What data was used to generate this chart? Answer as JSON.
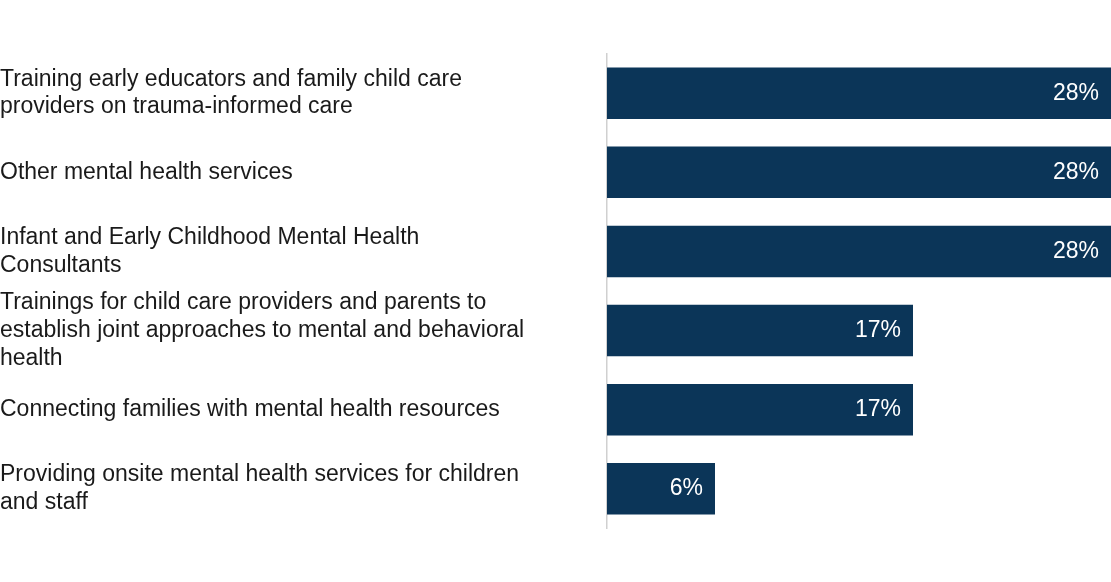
{
  "chart_data": {
    "type": "bar",
    "orientation": "horizontal",
    "categories": [
      "Training early educators and family child care providers on trauma-informed care",
      "Other mental health services",
      "Infant and Early Childhood Mental Health Consultants",
      "Trainings for child care providers and parents to establish joint approaches to mental and behavioral health",
      "Connecting families with mental health resources",
      "Providing onsite mental health services for children and staff"
    ],
    "values": [
      28,
      28,
      28,
      17,
      17,
      6
    ],
    "value_labels": [
      "28%",
      "28%",
      "28%",
      "17%",
      "17%",
      "6%"
    ],
    "color": "#0b3558",
    "xlim": [
      0,
      28
    ],
    "grid": false,
    "legend": false,
    "tick_labels": "y"
  }
}
